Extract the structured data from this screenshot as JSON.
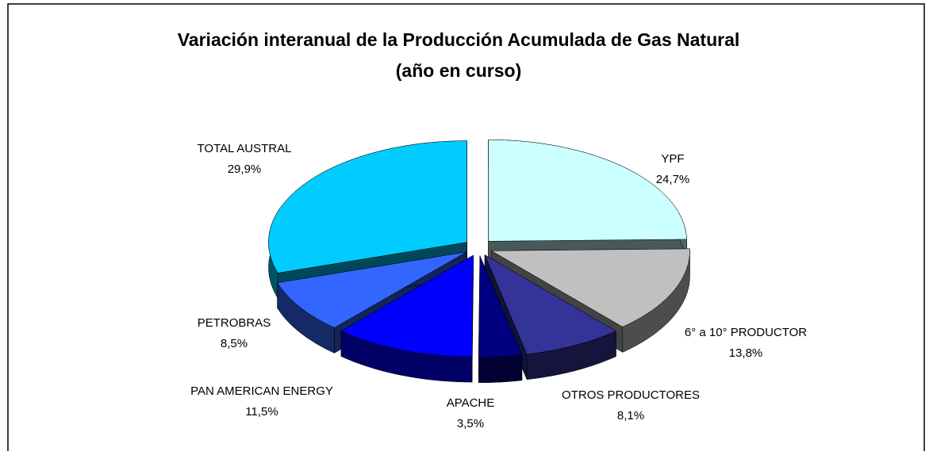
{
  "chart_data": {
    "type": "pie3d",
    "title": [
      "Variación interanual de la Producción Acumulada de Gas Natural",
      "(año en curso)"
    ],
    "categories": [
      "YPF",
      "6° a 10° PRODUCTOR",
      "OTROS PRODUCTORES",
      "APACHE",
      "PAN AMERICAN  ENERGY",
      "PETROBRAS",
      "TOTAL AUSTRAL"
    ],
    "values": [
      24.7,
      13.8,
      8.1,
      3.5,
      11.5,
      8.5,
      29.9
    ],
    "value_labels": [
      "24,7%",
      "13,8%",
      "8,1%",
      "3,5%",
      "11,5%",
      "8,5%",
      "29,9%"
    ],
    "colors": [
      "#ccffff",
      "#c0c0c0",
      "#333399",
      "#000080",
      "#0000ff",
      "#3366ff",
      "#00ccff"
    ]
  }
}
